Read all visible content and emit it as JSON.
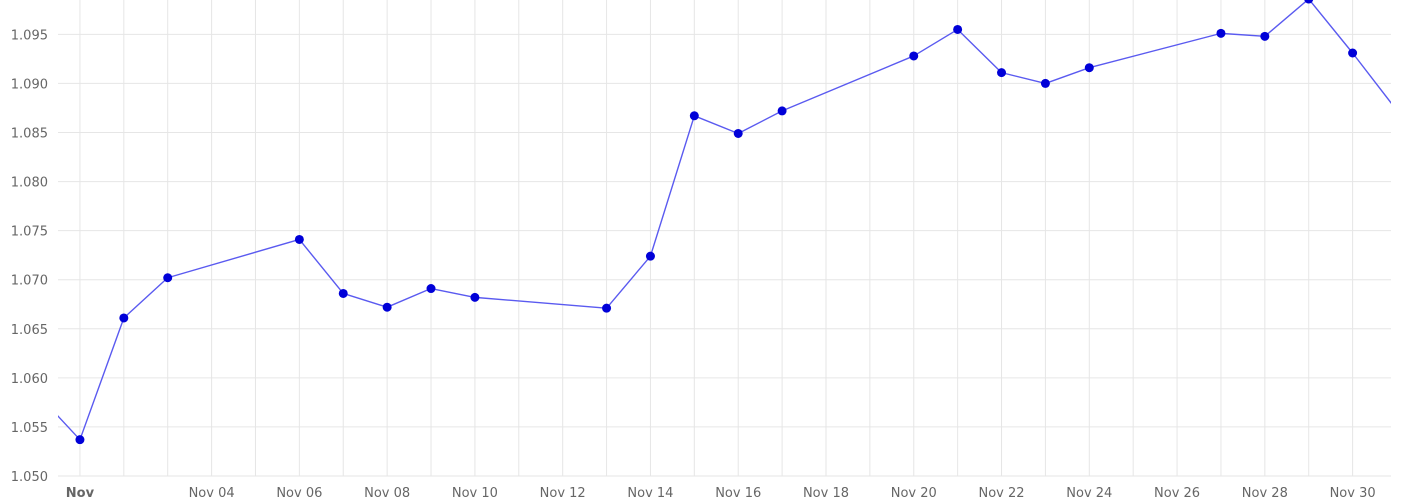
{
  "chart_data": {
    "type": "line",
    "title": "",
    "xlabel": "",
    "ylabel": "",
    "xlim": [
      "2024-10-31T12:00",
      "2024-11-30T21:00"
    ],
    "ylim": [
      1.05,
      1.0985
    ],
    "grid": true,
    "legend": "none",
    "yticks": [
      "1.050",
      "1.055",
      "1.060",
      "1.065",
      "1.070",
      "1.075",
      "1.080",
      "1.085",
      "1.090",
      "1.095"
    ],
    "xticks": [
      {
        "date": "2024-11-01",
        "label": "Nov",
        "bold": true
      },
      {
        "date": "2024-11-02",
        "label": ""
      },
      {
        "date": "2024-11-03",
        "label": ""
      },
      {
        "date": "2024-11-04",
        "label": "Nov 04"
      },
      {
        "date": "2024-11-05",
        "label": ""
      },
      {
        "date": "2024-11-06",
        "label": "Nov 06"
      },
      {
        "date": "2024-11-07",
        "label": ""
      },
      {
        "date": "2024-11-08",
        "label": "Nov 08"
      },
      {
        "date": "2024-11-09",
        "label": ""
      },
      {
        "date": "2024-11-10",
        "label": "Nov 10"
      },
      {
        "date": "2024-11-11",
        "label": ""
      },
      {
        "date": "2024-11-12",
        "label": "Nov 12"
      },
      {
        "date": "2024-11-13",
        "label": ""
      },
      {
        "date": "2024-11-14",
        "label": "Nov 14"
      },
      {
        "date": "2024-11-15",
        "label": ""
      },
      {
        "date": "2024-11-16",
        "label": "Nov 16"
      },
      {
        "date": "2024-11-17",
        "label": ""
      },
      {
        "date": "2024-11-18",
        "label": "Nov 18"
      },
      {
        "date": "2024-11-19",
        "label": ""
      },
      {
        "date": "2024-11-20",
        "label": "Nov 20"
      },
      {
        "date": "2024-11-21",
        "label": ""
      },
      {
        "date": "2024-11-22",
        "label": "Nov 22"
      },
      {
        "date": "2024-11-23",
        "label": ""
      },
      {
        "date": "2024-11-24",
        "label": "Nov 24"
      },
      {
        "date": "2024-11-25",
        "label": ""
      },
      {
        "date": "2024-11-26",
        "label": "Nov 26"
      },
      {
        "date": "2024-11-27",
        "label": ""
      },
      {
        "date": "2024-11-28",
        "label": "Nov 28"
      },
      {
        "date": "2024-11-29",
        "label": ""
      },
      {
        "date": "2024-11-30",
        "label": "Nov 30"
      }
    ],
    "series": [
      {
        "line_color": "#5a5af0",
        "marker_color": "#0000d8",
        "x": [
          "2024-10-31",
          "2024-11-01",
          "2024-11-02",
          "2024-11-03",
          "2024-11-06",
          "2024-11-07",
          "2024-11-08",
          "2024-11-09",
          "2024-11-10",
          "2024-11-13",
          "2024-11-14",
          "2024-11-15",
          "2024-11-16",
          "2024-11-17",
          "2024-11-20",
          "2024-11-21",
          "2024-11-22",
          "2024-11-23",
          "2024-11-24",
          "2024-11-27",
          "2024-11-28",
          "2024-11-29",
          "2024-11-30",
          "2024-12-01"
        ],
        "y": [
          1.0585,
          1.0537,
          1.0661,
          1.0702,
          1.0741,
          1.0686,
          1.0672,
          1.0691,
          1.0682,
          1.0671,
          1.0724,
          1.0867,
          1.0849,
          1.0872,
          1.0928,
          1.0955,
          1.0911,
          1.09,
          1.0916,
          1.0951,
          1.0948,
          1.0986,
          1.0931,
          1.0873
        ],
        "markers": [
          false,
          true,
          true,
          true,
          true,
          true,
          true,
          true,
          true,
          true,
          true,
          true,
          true,
          true,
          true,
          true,
          true,
          true,
          true,
          true,
          true,
          true,
          true,
          false
        ]
      }
    ]
  }
}
